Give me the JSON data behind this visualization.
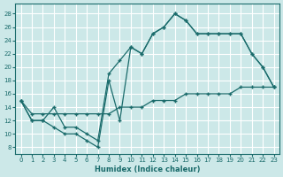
{
  "xlabel": "Humidex (Indice chaleur)",
  "bg_color": "#cce8e8",
  "line_color": "#1a6b6b",
  "grid_color": "#b8d8d8",
  "xlim": [
    -0.5,
    23.5
  ],
  "ylim": [
    7,
    29.5
  ],
  "yticks": [
    8,
    10,
    12,
    14,
    16,
    18,
    20,
    22,
    24,
    26,
    28
  ],
  "xticks": [
    0,
    1,
    2,
    3,
    4,
    5,
    6,
    7,
    8,
    9,
    10,
    11,
    12,
    13,
    14,
    15,
    16,
    17,
    18,
    19,
    20,
    21,
    22,
    23
  ],
  "lines": [
    {
      "x": [
        0,
        1,
        2,
        3,
        4,
        5,
        6,
        7,
        8,
        9,
        10,
        11,
        12,
        13,
        14,
        15,
        16,
        17,
        18,
        19,
        20,
        21,
        22,
        23
      ],
      "y": [
        15,
        12,
        12,
        14,
        11,
        11,
        10,
        9,
        19,
        21,
        23,
        22,
        25,
        26,
        28,
        27,
        25,
        25,
        25,
        25,
        25,
        22,
        20,
        17
      ]
    },
    {
      "x": [
        0,
        1,
        2,
        3,
        4,
        5,
        6,
        7,
        8,
        9,
        10,
        11,
        12,
        13,
        14,
        15,
        16,
        17,
        18,
        19,
        20,
        21,
        22,
        23
      ],
      "y": [
        15,
        13,
        13,
        13,
        13,
        13,
        13,
        13,
        13,
        14,
        14,
        14,
        15,
        15,
        15,
        16,
        16,
        16,
        16,
        16,
        17,
        17,
        17,
        17
      ]
    },
    {
      "x": [
        0,
        1,
        2,
        3,
        4,
        5,
        6,
        7,
        8,
        9,
        10,
        11,
        12,
        13,
        14,
        15,
        16,
        17,
        18,
        19,
        20,
        21,
        22,
        23
      ],
      "y": [
        15,
        12,
        12,
        11,
        10,
        10,
        9,
        8,
        18,
        12,
        23,
        22,
        25,
        26,
        28,
        27,
        25,
        25,
        25,
        25,
        25,
        22,
        20,
        17
      ]
    }
  ]
}
